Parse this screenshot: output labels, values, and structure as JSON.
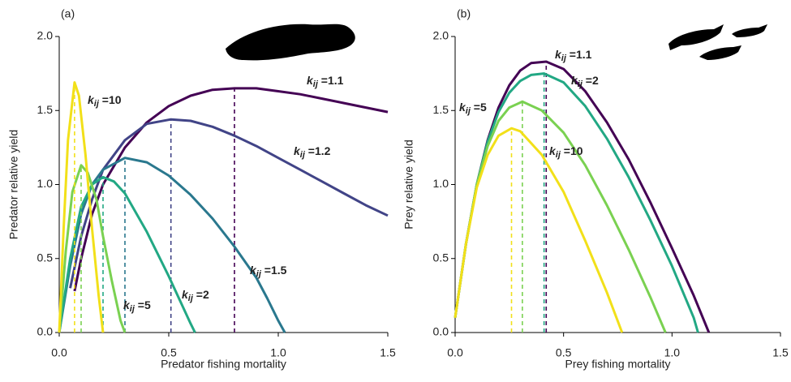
{
  "chart_data": [
    {
      "type": "line",
      "panel_label": "(a)",
      "x_label": "Predator fishing mortality",
      "y_label": "Predator relative yield",
      "xlim": [
        0,
        1.5
      ],
      "ylim": [
        0,
        2
      ],
      "xticks": [
        {
          "value": 0,
          "label": "0.0"
        },
        {
          "value": 0.5,
          "label": "0.5"
        },
        {
          "value": 1,
          "label": "1.0"
        },
        {
          "value": 1.5,
          "label": "1.5"
        }
      ],
      "yticks": [
        {
          "value": 0,
          "label": "0.0"
        },
        {
          "value": 0.5,
          "label": "0.5"
        },
        {
          "value": 1,
          "label": "1.0"
        },
        {
          "value": 1.5,
          "label": "1.5"
        },
        {
          "value": 2,
          "label": "2.0"
        }
      ],
      "series": [
        {
          "name": "kij =1.1",
          "color": "#440154",
          "x": [
            0.07,
            0.1,
            0.15,
            0.2,
            0.3,
            0.4,
            0.5,
            0.6,
            0.7,
            0.8,
            0.9,
            1.0,
            1.1,
            1.2,
            1.3,
            1.4,
            1.5
          ],
          "values": [
            0.28,
            0.5,
            0.8,
            1.0,
            1.25,
            1.42,
            1.53,
            1.6,
            1.64,
            1.65,
            1.65,
            1.63,
            1.61,
            1.58,
            1.55,
            1.52,
            1.49
          ]
        },
        {
          "name": "kij =1.2",
          "color": "#414487",
          "x": [
            0.05,
            0.1,
            0.15,
            0.2,
            0.3,
            0.4,
            0.51,
            0.6,
            0.7,
            0.8,
            0.9,
            1.0,
            1.1,
            1.2,
            1.3,
            1.4,
            1.5
          ],
          "values": [
            0.3,
            0.65,
            0.9,
            1.1,
            1.3,
            1.41,
            1.44,
            1.43,
            1.39,
            1.33,
            1.26,
            1.18,
            1.1,
            1.02,
            0.94,
            0.86,
            0.79
          ]
        },
        {
          "name": "kij =1.5",
          "color": "#2a788e",
          "x": [
            0,
            0.05,
            0.1,
            0.15,
            0.2,
            0.3,
            0.4,
            0.5,
            0.6,
            0.7,
            0.8,
            0.9,
            0.95,
            1.0,
            1.03
          ],
          "values": [
            0,
            0.45,
            0.8,
            1.0,
            1.1,
            1.18,
            1.15,
            1.06,
            0.93,
            0.77,
            0.58,
            0.37,
            0.23,
            0.08,
            0
          ]
        },
        {
          "name": "kij =2",
          "color": "#22a884",
          "x": [
            0,
            0.05,
            0.1,
            0.15,
            0.2,
            0.25,
            0.3,
            0.4,
            0.5,
            0.55,
            0.6,
            0.62
          ],
          "values": [
            0,
            0.5,
            0.85,
            1.0,
            1.05,
            1.02,
            0.94,
            0.68,
            0.38,
            0.22,
            0.06,
            0
          ]
        },
        {
          "name": "kij =5",
          "color": "#7ad151",
          "x": [
            0,
            0.03,
            0.06,
            0.1,
            0.13,
            0.17,
            0.2,
            0.24,
            0.28,
            0.3
          ],
          "values": [
            0,
            0.55,
            0.95,
            1.13,
            1.08,
            0.9,
            0.65,
            0.35,
            0.08,
            0
          ]
        },
        {
          "name": "kij =10",
          "color": "#f2e019",
          "x": [
            0,
            0.02,
            0.04,
            0.07,
            0.09,
            0.12,
            0.15,
            0.18,
            0.2
          ],
          "values": [
            0,
            0.7,
            1.3,
            1.69,
            1.6,
            1.2,
            0.7,
            0.25,
            0
          ]
        }
      ]
    },
    {
      "type": "line",
      "panel_label": "(b)",
      "x_label": "Prey fishing mortality",
      "y_label": "Prey relative yield",
      "xlim": [
        0,
        1.5
      ],
      "ylim": [
        0,
        2
      ],
      "xticks": [
        {
          "value": 0,
          "label": "0.0"
        },
        {
          "value": 0.5,
          "label": "0.5"
        },
        {
          "value": 1,
          "label": "1.0"
        },
        {
          "value": 1.5,
          "label": "1.5"
        }
      ],
      "yticks": [
        {
          "value": 0,
          "label": "0.0"
        },
        {
          "value": 0.5,
          "label": "0.5"
        },
        {
          "value": 1,
          "label": "1.0"
        },
        {
          "value": 1.5,
          "label": "1.5"
        },
        {
          "value": 2,
          "label": "2.0"
        }
      ],
      "series": [
        {
          "name": "kij =1.1",
          "color": "#440154",
          "x": [
            0,
            0.05,
            0.1,
            0.15,
            0.2,
            0.25,
            0.3,
            0.35,
            0.42,
            0.5,
            0.6,
            0.7,
            0.8,
            0.9,
            1.0,
            1.1,
            1.17
          ],
          "values": [
            0.1,
            0.6,
            1.0,
            1.3,
            1.52,
            1.67,
            1.77,
            1.82,
            1.83,
            1.78,
            1.63,
            1.42,
            1.17,
            0.88,
            0.57,
            0.25,
            0
          ]
        },
        {
          "name": "kij =2",
          "color": "#22a884",
          "x": [
            0,
            0.05,
            0.1,
            0.15,
            0.2,
            0.25,
            0.3,
            0.35,
            0.41,
            0.5,
            0.6,
            0.7,
            0.8,
            0.9,
            1.0,
            1.1,
            1.12
          ],
          "values": [
            0.1,
            0.6,
            1.0,
            1.29,
            1.49,
            1.62,
            1.7,
            1.74,
            1.75,
            1.69,
            1.53,
            1.31,
            1.05,
            0.76,
            0.45,
            0.1,
            0
          ]
        },
        {
          "name": "kij =5",
          "color": "#7ad151",
          "x": [
            0,
            0.05,
            0.1,
            0.15,
            0.2,
            0.25,
            0.31,
            0.4,
            0.5,
            0.6,
            0.7,
            0.8,
            0.9,
            0.97
          ],
          "values": [
            0.1,
            0.6,
            1.0,
            1.26,
            1.43,
            1.52,
            1.56,
            1.5,
            1.35,
            1.13,
            0.86,
            0.56,
            0.24,
            0
          ]
        },
        {
          "name": "kij =10",
          "color": "#f2e019",
          "x": [
            0,
            0.05,
            0.1,
            0.15,
            0.2,
            0.26,
            0.3,
            0.4,
            0.5,
            0.6,
            0.7,
            0.77
          ],
          "values": [
            0.1,
            0.6,
            0.98,
            1.2,
            1.33,
            1.38,
            1.36,
            1.2,
            0.95,
            0.62,
            0.27,
            0
          ]
        }
      ]
    }
  ]
}
